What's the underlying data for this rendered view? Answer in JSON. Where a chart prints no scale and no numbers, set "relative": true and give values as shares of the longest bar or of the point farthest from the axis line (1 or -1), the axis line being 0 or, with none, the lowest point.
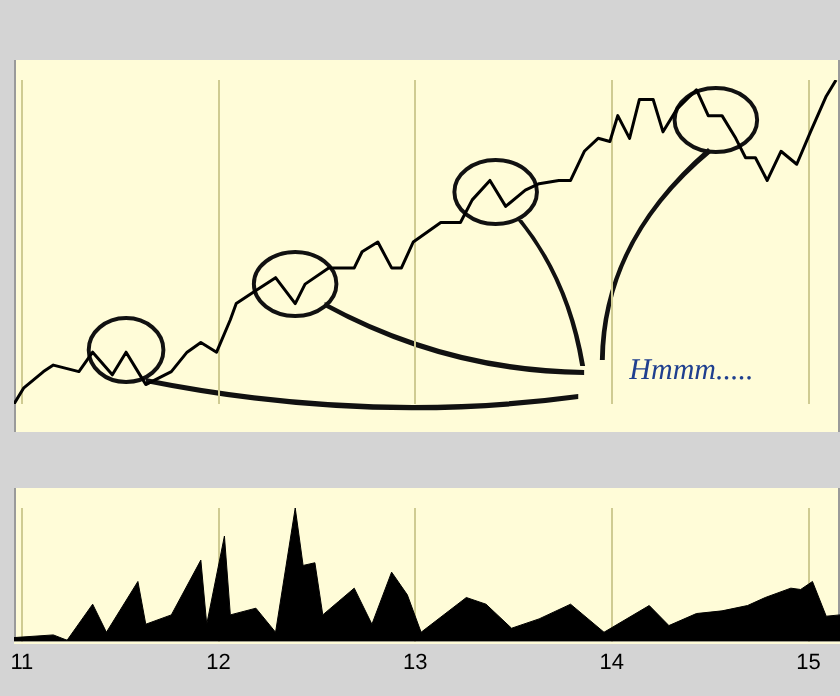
{
  "chart_data": [
    {
      "type": "line",
      "relative": true,
      "tick_labels": false,
      "grid": "x",
      "legend": false,
      "marker": "none",
      "xlim": [
        10.96,
        15.16
      ],
      "xticks": [
        11,
        12,
        13,
        14,
        15
      ],
      "annotations": [
        "Hmmm....."
      ],
      "series": [
        {
          "color": "#000000",
          "x": [
            10.96,
            11.01,
            11.11,
            11.16,
            11.29,
            11.36,
            11.46,
            11.53,
            11.59,
            11.63,
            11.76,
            11.84,
            11.91,
            11.99,
            12.06,
            12.09,
            12.19,
            12.29,
            12.39,
            12.44,
            12.56,
            12.69,
            12.73,
            12.81,
            12.88,
            12.93,
            12.99,
            13.13,
            13.23,
            13.29,
            13.38,
            13.46,
            13.56,
            13.63,
            13.73,
            13.79,
            13.86,
            13.93,
            13.99,
            14.03,
            14.09,
            14.14,
            14.21,
            14.26,
            14.33,
            14.43,
            14.49,
            14.56,
            14.63,
            14.68,
            14.73,
            14.79,
            14.86,
            14.94,
            15.01,
            15.09,
            15.14
          ],
          "values": [
            0,
            0.05,
            0.1,
            0.12,
            0.1,
            0.16,
            0.09,
            0.16,
            0.1,
            0.06,
            0.1,
            0.16,
            0.19,
            0.16,
            0.26,
            0.31,
            0.35,
            0.39,
            0.31,
            0.37,
            0.42,
            0.42,
            0.47,
            0.5,
            0.42,
            0.42,
            0.5,
            0.56,
            0.56,
            0.63,
            0.69,
            0.61,
            0.66,
            0.68,
            0.69,
            0.69,
            0.78,
            0.82,
            0.81,
            0.89,
            0.82,
            0.94,
            0.94,
            0.84,
            0.91,
            0.97,
            0.89,
            0.89,
            0.82,
            0.76,
            0.76,
            0.69,
            0.78,
            0.74,
            0.84,
            0.95,
            1
          ]
        }
      ]
    },
    {
      "type": "area",
      "relative": true,
      "tick_labels": "x",
      "grid": "x",
      "legend": false,
      "marker": "none",
      "xlim": [
        10.96,
        15.16
      ],
      "xticks": [
        11,
        12,
        13,
        14,
        15
      ],
      "series": [
        {
          "color": "#000000",
          "x": [
            10.96,
            11.16,
            11.23,
            11.36,
            11.43,
            11.59,
            11.63,
            11.76,
            11.91,
            11.94,
            12.03,
            12.06,
            12.19,
            12.29,
            12.39,
            12.43,
            12.49,
            12.53,
            12.61,
            12.69,
            12.78,
            12.88,
            12.96,
            13.03,
            13.26,
            13.36,
            13.49,
            13.63,
            13.79,
            13.96,
            14.19,
            14.29,
            14.43,
            14.56,
            14.69,
            14.78,
            14.91,
            14.96,
            15.02,
            15.09,
            15.16
          ],
          "values": [
            0.03,
            0.05,
            0.01,
            0.28,
            0.07,
            0.45,
            0.13,
            0.2,
            0.61,
            0.13,
            0.79,
            0.2,
            0.25,
            0.07,
            1,
            0.57,
            0.59,
            0.2,
            0.3,
            0.4,
            0.13,
            0.52,
            0.35,
            0.07,
            0.33,
            0.28,
            0.1,
            0.17,
            0.28,
            0.07,
            0.27,
            0.12,
            0.21,
            0.23,
            0.27,
            0.33,
            0.4,
            0.39,
            0.45,
            0.19,
            0.2
          ]
        }
      ]
    }
  ]
}
